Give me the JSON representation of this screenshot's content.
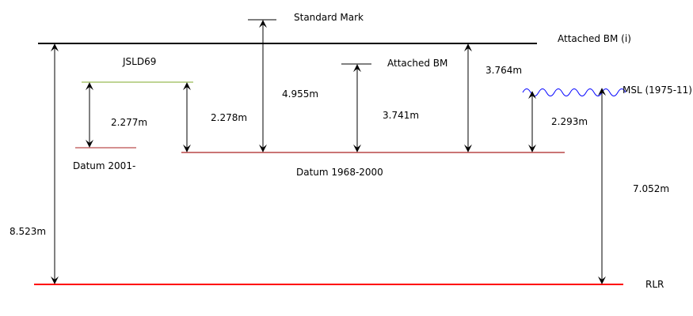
{
  "diagram": {
    "labels": {
      "standard_mark": "Standard Mark",
      "attached_bm_i": "Attached BM (i)",
      "jsld69": "JSLD69",
      "attached_bm": "Attached BM",
      "msl": "MSL (1975-11)",
      "datum_2001": "Datum 2001-",
      "datum_1968": "Datum 1968-2000",
      "rlr": "RLR"
    },
    "measurements": {
      "attached_bm_i_above_rlr": "8.523m",
      "jsld69_above_datum_2001": "2.277m",
      "jsld69_above_datum_1968": "2.278m",
      "standard_mark_above_datum_1968": "4.955m",
      "attached_bm_above_datum_1968": "3.741m",
      "attached_bm_i_above_datum_1968": "3.764m",
      "msl_above_datum_1968": "2.293m",
      "msl_above_rlr": "7.052m"
    },
    "colors": {
      "bm_line": "#000000",
      "jsld_line": "#7faa2a",
      "datum_line": "#aa2222",
      "rlr_line": "#ff0000",
      "msl_wave": "#0000ff"
    }
  }
}
